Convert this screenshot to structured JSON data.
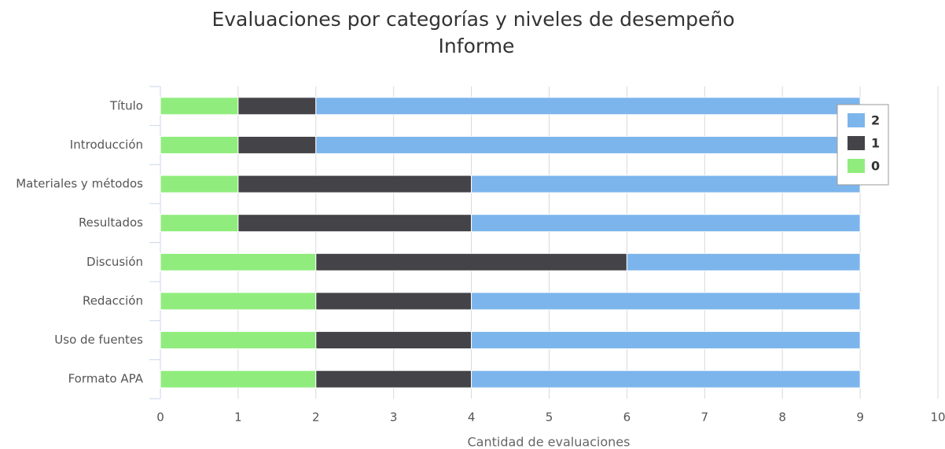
{
  "chart_data": {
    "type": "stacked-bar-horizontal",
    "title": "Evaluaciones por categorías y niveles de desempeño",
    "subtitle": "Informe",
    "x_label": "Cantidad de evaluaciones",
    "categories": [
      "Título",
      "Introducción",
      "Materiales y métodos",
      "Resultados",
      "Discusión",
      "Redacción",
      "Uso de fuentes",
      "Formato APA"
    ],
    "series": [
      {
        "name": "0",
        "color": "#90ed7d",
        "values": [
          1,
          1,
          1,
          1,
          2,
          2,
          2,
          2
        ]
      },
      {
        "name": "1",
        "color": "#434348",
        "values": [
          1,
          1,
          3,
          3,
          4,
          2,
          2,
          2
        ]
      },
      {
        "name": "2",
        "color": "#7cb5ec",
        "values": [
          7,
          7,
          5,
          5,
          3,
          5,
          5,
          5
        ]
      }
    ],
    "xlim": [
      0,
      10
    ],
    "xticks": [
      0,
      1,
      2,
      3,
      4,
      5,
      6,
      7,
      8,
      9,
      10
    ],
    "grid": true,
    "legend_position": "top-right",
    "legend_reversed": true
  }
}
